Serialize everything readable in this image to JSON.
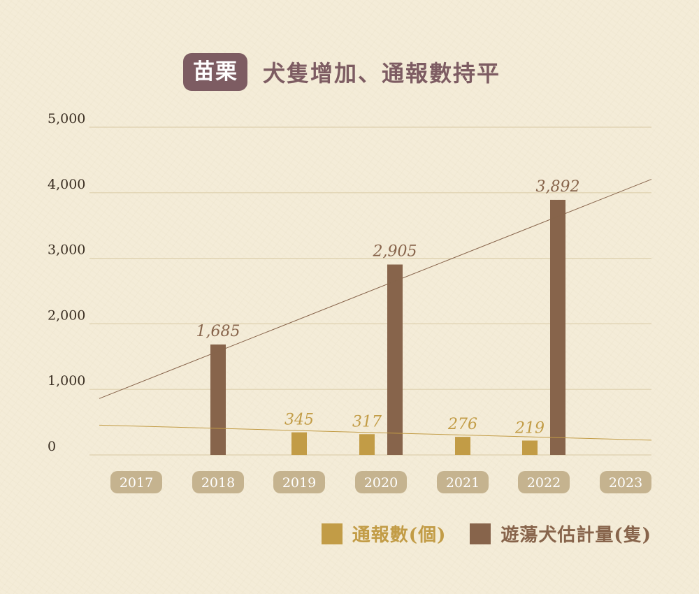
{
  "header": {
    "region": "苗栗",
    "title": "犬隻增加、通報數持平"
  },
  "colors": {
    "background": "#f4ecd8",
    "reports": "#c29c46",
    "dogs": "#87644b",
    "badge": "#7d5c62",
    "pill": "#c5b38f",
    "grid": "#ddd0ae"
  },
  "chart_data": {
    "type": "bar",
    "categories": [
      "2017",
      "2018",
      "2019",
      "2020",
      "2021",
      "2022",
      "2023"
    ],
    "ylim": [
      0,
      5000
    ],
    "yticks": [
      0,
      1000,
      2000,
      3000,
      4000,
      5000
    ],
    "ytick_labels": [
      "0",
      "1,000",
      "2,000",
      "3,000",
      "4,000",
      "5,000"
    ],
    "grid": true,
    "legend_position": "bottom-right",
    "series": [
      {
        "name": "通報數(個)",
        "color": "#c29c46",
        "values": [
          null,
          null,
          345,
          317,
          276,
          219,
          null
        ],
        "labels": [
          null,
          null,
          "345",
          "317",
          "276",
          "219",
          null
        ]
      },
      {
        "name": "遊蕩犬估計量(隻)",
        "color": "#87644b",
        "values": [
          null,
          1685,
          null,
          2905,
          null,
          3892,
          null
        ],
        "labels": [
          null,
          "1,685",
          null,
          "2,905",
          null,
          "3,892",
          null
        ]
      }
    ],
    "trendlines": [
      {
        "series": "通報數(個)",
        "start": 455,
        "end": 225
      },
      {
        "series": "遊蕩犬估計量(隻)",
        "start": 860,
        "end": 4205
      }
    ]
  }
}
